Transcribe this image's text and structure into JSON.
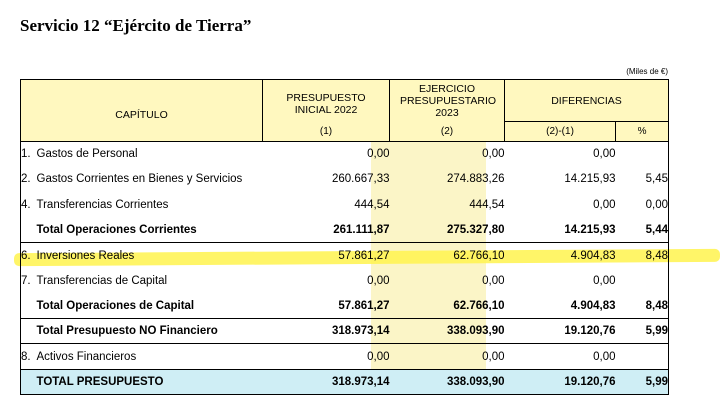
{
  "title": "Servicio 12 “Ejército de Tierra”",
  "unit": "(Miles de €)",
  "header": {
    "capitulo": "CAPÍTULO",
    "col1": "PRESUPUESTO INICIAL 2022",
    "col1_sub": "(1)",
    "col2": "EJERCICIO PRESUPUESTARIO 2023",
    "col2_sub": "(2)",
    "diferencias": "DIFERENCIAS",
    "diff_sub": "(2)-(1)",
    "pct_sub": "%"
  },
  "rows": [
    {
      "num": "1.",
      "label": "Gastos de Personal",
      "c1": "0,00",
      "c2": "0,00",
      "diff": "0,00",
      "pct": ""
    },
    {
      "num": "2.",
      "label": "Gastos Corrientes en Bienes y Servicios",
      "c1": "260.667,33",
      "c2": "274.883,26",
      "diff": "14.215,93",
      "pct": "5,45"
    },
    {
      "num": "4.",
      "label": "Transferencias Corrientes",
      "c1": "444,54",
      "c2": "444,54",
      "diff": "0,00",
      "pct": "0,00"
    },
    {
      "num": "",
      "label": "Total Operaciones Corrientes",
      "c1": "261.111,87",
      "c2": "275.327,80",
      "diff": "14.215,93",
      "pct": "5,44"
    },
    {
      "num": "6.",
      "label": "Inversiones Reales",
      "c1": "57.861,27",
      "c2": "62.766,10",
      "diff": "4.904,83",
      "pct": "8,48"
    },
    {
      "num": "7.",
      "label": "Transferencias de Capital",
      "c1": "0,00",
      "c2": "0,00",
      "diff": "0,00",
      "pct": ""
    },
    {
      "num": "",
      "label": "Total Operaciones de Capital",
      "c1": "57.861,27",
      "c2": "62.766,10",
      "diff": "4.904,83",
      "pct": "8,48"
    },
    {
      "num": "",
      "label": "Total Presupuesto NO Financiero",
      "c1": "318.973,14",
      "c2": "338.093,90",
      "diff": "19.120,76",
      "pct": "5,99"
    },
    {
      "num": "8.",
      "label": "Activos Financieros",
      "c1": "0,00",
      "c2": "0,00",
      "diff": "0,00",
      "pct": ""
    },
    {
      "num": "",
      "label": "TOTAL PRESUPUESTO",
      "c1": "318.973,14",
      "c2": "338.093,90",
      "diff": "19.120,76",
      "pct": "5,99"
    }
  ]
}
